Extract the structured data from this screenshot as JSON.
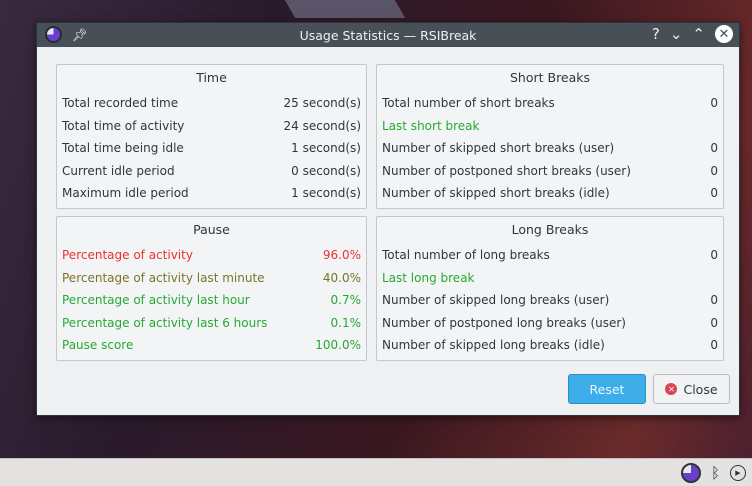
{
  "window": {
    "title": "Usage Statistics — RSIBreak",
    "help": "?",
    "minimize": "⌄",
    "maximize": "⌃",
    "close": "✕"
  },
  "time": {
    "title": "Time",
    "rows": [
      {
        "label": "Total recorded time",
        "value": "25 second(s)"
      },
      {
        "label": "Total time of activity",
        "value": "24 second(s)"
      },
      {
        "label": "Total time being idle",
        "value": "1 second(s)"
      },
      {
        "label": "Current idle period",
        "value": "0 second(s)"
      },
      {
        "label": "Maximum idle period",
        "value": "1 second(s)"
      }
    ]
  },
  "short": {
    "title": "Short Breaks",
    "rows": [
      {
        "label": "Total number of short breaks",
        "value": "0"
      },
      {
        "label": "Last short break",
        "value": ""
      },
      {
        "label": "Number of skipped short breaks (user)",
        "value": "0"
      },
      {
        "label": "Number of postponed short breaks (user)",
        "value": "0"
      },
      {
        "label": "Number of skipped short breaks (idle)",
        "value": "0"
      }
    ]
  },
  "pause": {
    "title": "Pause",
    "rows": [
      {
        "label": "Percentage of activity",
        "value": "96.0%"
      },
      {
        "label": "Percentage of activity last minute",
        "value": "40.0%"
      },
      {
        "label": "Percentage of activity last hour",
        "value": "0.7%"
      },
      {
        "label": "Percentage of activity last 6 hours",
        "value": "0.1%"
      },
      {
        "label": "Pause score",
        "value": "100.0%"
      }
    ]
  },
  "long": {
    "title": "Long Breaks",
    "rows": [
      {
        "label": "Total number of long breaks",
        "value": "0"
      },
      {
        "label": "Last long break",
        "value": ""
      },
      {
        "label": "Number of skipped long breaks (user)",
        "value": "0"
      },
      {
        "label": "Number of postponed long breaks (user)",
        "value": "0"
      },
      {
        "label": "Number of skipped long breaks (idle)",
        "value": "0"
      }
    ]
  },
  "buttons": {
    "reset": "Reset",
    "close": "Close"
  },
  "colors": {
    "red": "#ea3232",
    "olive": "#7c7328",
    "green": "#27a934",
    "accent": "#3daee9"
  }
}
